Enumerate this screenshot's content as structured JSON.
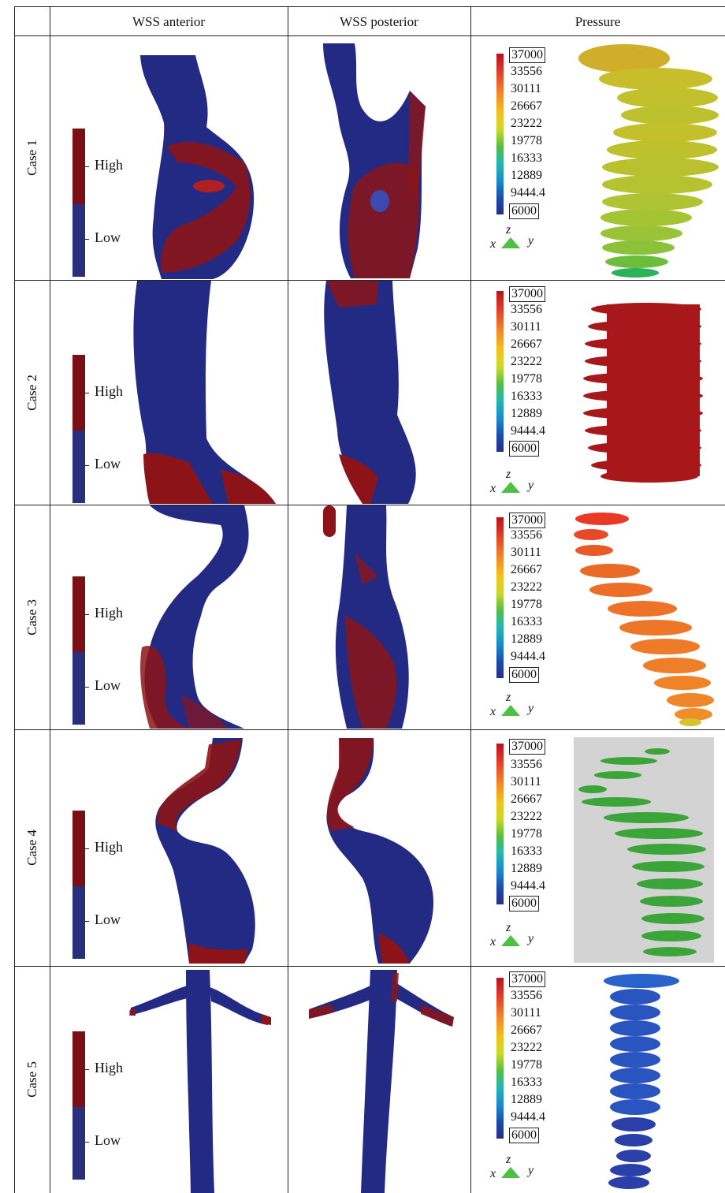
{
  "headers": {
    "wss_anterior": "WSS anterior",
    "wss_posterior": "WSS posterior",
    "pressure": "Pressure"
  },
  "rows": [
    {
      "label": "Case 1"
    },
    {
      "label": "Case 2"
    },
    {
      "label": "Case 3"
    },
    {
      "label": "Case 4"
    },
    {
      "label": "Case 5"
    }
  ],
  "wss_legend": {
    "high": "High",
    "low": "Low",
    "high_color": "#7a1016",
    "low_color": "#2a2f7c"
  },
  "pressure_scale": {
    "values": [
      "37000",
      "33556",
      "30111",
      "26667",
      "23222",
      "19778",
      "16333",
      "12889",
      "9444.4",
      "6000"
    ]
  },
  "axes": {
    "z": "z",
    "x": "x",
    "y": "y"
  },
  "colors": {
    "vessel_blue": "#232a84",
    "vessel_red": "#8c1418",
    "case1_pressure": "#c8c02a",
    "case2_pressure": "#a8181b",
    "case3_pressure": "#ec6a28",
    "case4_pressure": "#3ba53a",
    "case5_pressure": "#2a55c0",
    "case4_bg": "#d3d3d3"
  }
}
